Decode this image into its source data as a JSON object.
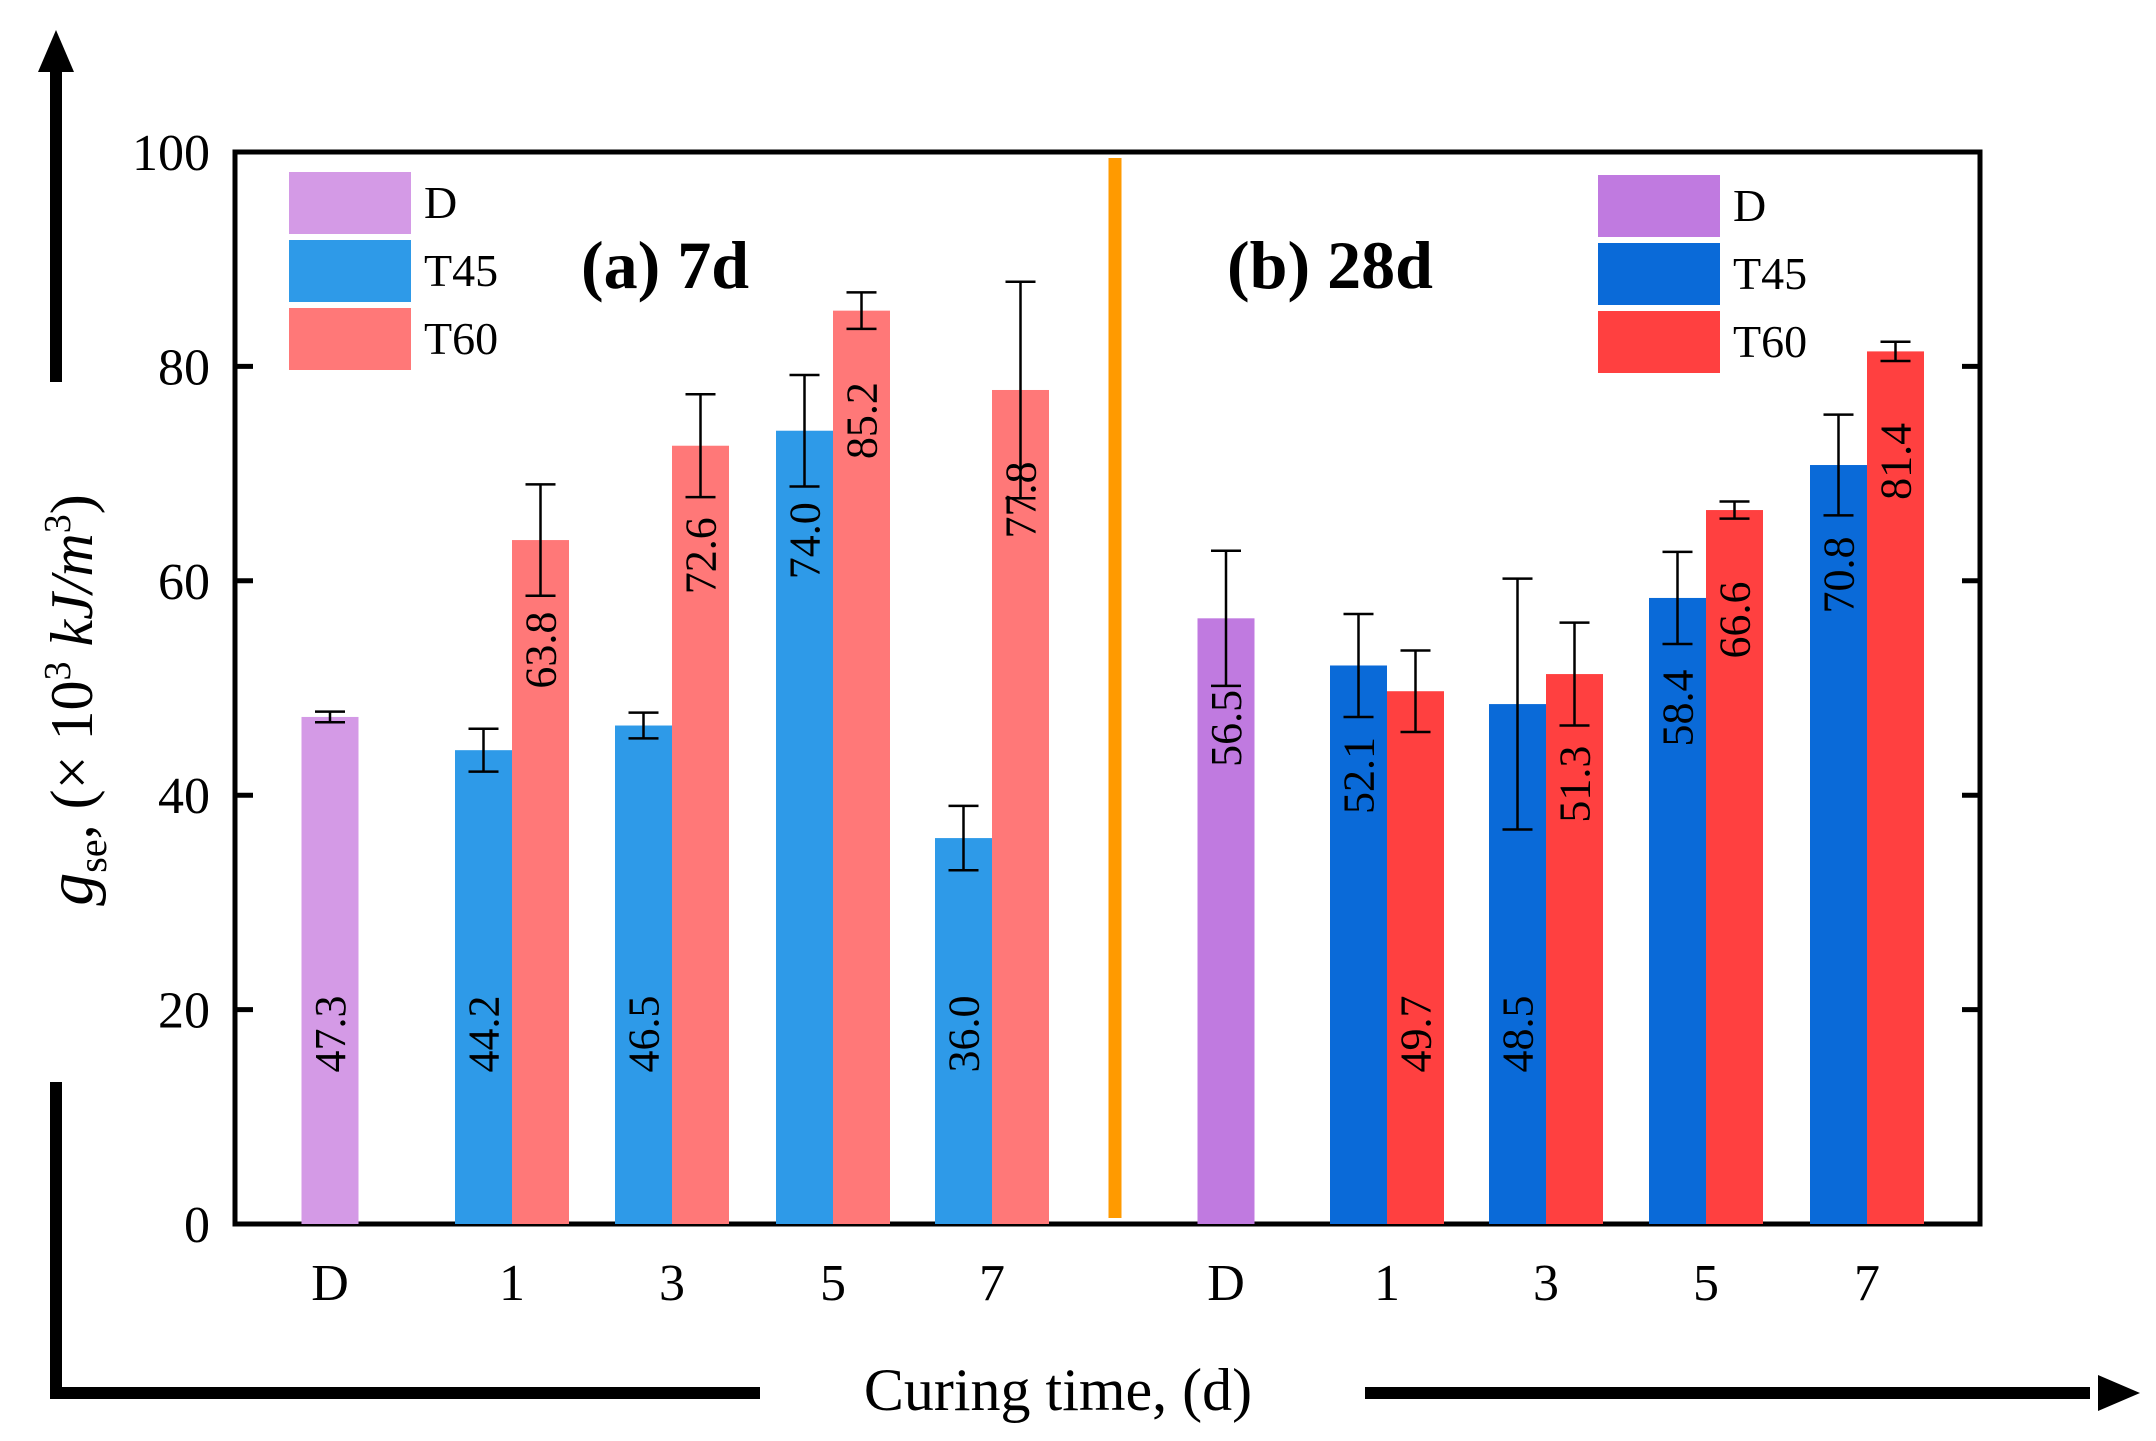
{
  "chart_data": {
    "type": "bar",
    "xlabel": "Curing time, (d)",
    "ylabel": {
      "symbol": "g",
      "subscript": "se",
      "unit_prefix": ", (× 10",
      "exponent": "3",
      "unit": " kJ/m",
      "unit_exponent": "3",
      "close": ")"
    },
    "ylim": [
      0,
      100
    ],
    "yticks": [
      "0",
      "20",
      "40",
      "60",
      "80",
      "100"
    ],
    "grid": false,
    "colors": {
      "D_7d": "#d49ae6",
      "T45_7d": "#2e9ae8",
      "T60_7d": "#ff7878",
      "D_28d": "#c07ae0",
      "T45_28d": "#0a6ad8",
      "T60_28d": "#ff4040",
      "separator": "#ff9a00"
    },
    "panels": [
      {
        "title": "(a) 7d",
        "categories": [
          "D",
          "1",
          "3",
          "5",
          "7"
        ],
        "legend": [
          "D",
          "T45",
          "T60"
        ],
        "series": [
          {
            "name": "D",
            "color_key": "D_7d",
            "values": [
              47.3,
              null,
              null,
              null,
              null
            ],
            "errors": [
              0.5,
              null,
              null,
              null,
              null
            ],
            "labels": [
              "47.3",
              null,
              null,
              null,
              null
            ]
          },
          {
            "name": "T45",
            "color_key": "T45_7d",
            "values": [
              null,
              44.2,
              46.5,
              74.0,
              36.0
            ],
            "errors": [
              null,
              2.0,
              1.2,
              5.2,
              3.0
            ],
            "labels": [
              null,
              "44.2",
              "46.5",
              "74.0",
              "36.0"
            ]
          },
          {
            "name": "T60",
            "color_key": "T60_7d",
            "values": [
              null,
              63.8,
              72.6,
              85.2,
              77.8
            ],
            "errors": [
              null,
              5.2,
              4.8,
              1.7,
              10.1
            ],
            "labels": [
              null,
              "63.8",
              "72.6",
              "85.2",
              "77.8"
            ]
          }
        ]
      },
      {
        "title": "(b) 28d",
        "categories": [
          "D",
          "1",
          "3",
          "5",
          "7"
        ],
        "legend": [
          "D",
          "T45",
          "T60"
        ],
        "series": [
          {
            "name": "D",
            "color_key": "D_28d",
            "values": [
              56.5,
              null,
              null,
              null,
              null
            ],
            "errors": [
              6.3,
              null,
              null,
              null,
              null
            ],
            "labels": [
              "56.5",
              null,
              null,
              null,
              null
            ]
          },
          {
            "name": "T45",
            "color_key": "T45_28d",
            "values": [
              null,
              52.1,
              48.5,
              58.4,
              70.8
            ],
            "errors": [
              null,
              4.8,
              11.7,
              4.3,
              4.7
            ],
            "labels": [
              null,
              "52.1",
              "48.5",
              "58.4",
              "70.8"
            ]
          },
          {
            "name": "T60",
            "color_key": "T60_28d",
            "values": [
              null,
              49.7,
              51.3,
              66.6,
              81.4
            ],
            "errors": [
              null,
              3.8,
              4.8,
              0.8,
              0.9
            ],
            "labels": [
              null,
              "49.7",
              "51.3",
              "66.6",
              "81.4"
            ]
          }
        ]
      }
    ]
  }
}
